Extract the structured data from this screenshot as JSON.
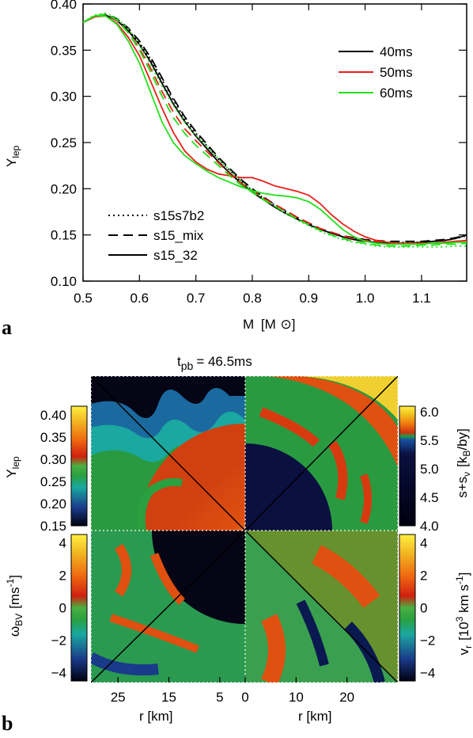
{
  "panel_labels": {
    "a": "a",
    "b": "b"
  },
  "chart_data": [
    {
      "type": "line",
      "panel": "a",
      "xlabel": "M",
      "xlabel_unit": "[M",
      "xlabel_unit_close": "]",
      "ylabel": "Y",
      "ylabel_sub": "lep",
      "xlim": [
        0.5,
        1.18
      ],
      "ylim": [
        0.1,
        0.4
      ],
      "xticks": [
        0.5,
        0.6,
        0.7,
        0.8,
        0.9,
        1.0,
        1.1
      ],
      "xtick_labels": [
        "0.5",
        "0.6",
        "0.7",
        "0.8",
        "0.9",
        "1.0",
        "1.1"
      ],
      "yticks": [
        0.1,
        0.15,
        0.2,
        0.25,
        0.3,
        0.35,
        0.4
      ],
      "ytick_labels": [
        "0.10",
        "0.15",
        "0.20",
        "0.25",
        "0.30",
        "0.35",
        "0.40"
      ],
      "time_legend": [
        {
          "label": "40ms",
          "color": "#000000"
        },
        {
          "label": "50ms",
          "color": "#e8201a"
        },
        {
          "label": "60ms",
          "color": "#22e01a"
        }
      ],
      "style_legend": [
        {
          "label": "s15s7b2",
          "dash": "dotted"
        },
        {
          "label": "s15_mix",
          "dash": "dashed"
        },
        {
          "label": "s15_32",
          "dash": "solid"
        }
      ],
      "series": [
        {
          "time": "40ms",
          "model": "s15s7b2",
          "color": "#000000",
          "dash": "dotted",
          "x": [
            0.5,
            0.52,
            0.54,
            0.56,
            0.58,
            0.6,
            0.62,
            0.64,
            0.66,
            0.68,
            0.7,
            0.72,
            0.74,
            0.76,
            0.78,
            0.8,
            0.82,
            0.84,
            0.86,
            0.88,
            0.9,
            0.92,
            0.94,
            0.96,
            0.98,
            1.0,
            1.02,
            1.04,
            1.06,
            1.08,
            1.1,
            1.12,
            1.14,
            1.16,
            1.18
          ],
          "y": [
            0.38,
            0.386,
            0.388,
            0.383,
            0.372,
            0.358,
            0.34,
            0.318,
            0.296,
            0.276,
            0.26,
            0.246,
            0.232,
            0.22,
            0.208,
            0.198,
            0.19,
            0.182,
            0.175,
            0.168,
            0.162,
            0.156,
            0.152,
            0.148,
            0.146,
            0.144,
            0.143,
            0.142,
            0.142,
            0.142,
            0.142,
            0.143,
            0.144,
            0.146,
            0.149
          ]
        },
        {
          "time": "40ms",
          "model": "s15_mix",
          "color": "#000000",
          "dash": "dashed",
          "x": [
            0.5,
            0.52,
            0.54,
            0.56,
            0.58,
            0.6,
            0.62,
            0.64,
            0.66,
            0.68,
            0.7,
            0.72,
            0.74,
            0.76,
            0.78,
            0.8,
            0.82,
            0.84,
            0.86,
            0.88,
            0.9,
            0.92,
            0.94,
            0.96,
            0.98,
            1.0,
            1.02,
            1.04,
            1.06,
            1.08,
            1.1,
            1.12,
            1.14,
            1.16,
            1.18
          ],
          "y": [
            0.38,
            0.386,
            0.389,
            0.384,
            0.374,
            0.36,
            0.342,
            0.32,
            0.298,
            0.278,
            0.262,
            0.248,
            0.234,
            0.222,
            0.21,
            0.2,
            0.191,
            0.183,
            0.176,
            0.169,
            0.163,
            0.157,
            0.153,
            0.149,
            0.147,
            0.145,
            0.144,
            0.143,
            0.143,
            0.143,
            0.143,
            0.144,
            0.145,
            0.147,
            0.15
          ]
        },
        {
          "time": "40ms",
          "model": "s15_32",
          "color": "#000000",
          "dash": "solid",
          "x": [
            0.5,
            0.52,
            0.54,
            0.56,
            0.58,
            0.6,
            0.62,
            0.64,
            0.66,
            0.68,
            0.7,
            0.72,
            0.74,
            0.76,
            0.78,
            0.8,
            0.82,
            0.84,
            0.86,
            0.88,
            0.9,
            0.92,
            0.94,
            0.96,
            0.98,
            1.0,
            1.02,
            1.04,
            1.06,
            1.08,
            1.1,
            1.12,
            1.14,
            1.16,
            1.18
          ],
          "y": [
            0.38,
            0.386,
            0.388,
            0.382,
            0.371,
            0.356,
            0.337,
            0.314,
            0.292,
            0.273,
            0.257,
            0.243,
            0.229,
            0.217,
            0.206,
            0.196,
            0.188,
            0.18,
            0.173,
            0.167,
            0.161,
            0.156,
            0.152,
            0.148,
            0.145,
            0.143,
            0.142,
            0.141,
            0.141,
            0.141,
            0.142,
            0.143,
            0.144,
            0.146,
            0.15
          ]
        },
        {
          "time": "50ms",
          "model": "s15_mix",
          "color": "#e8201a",
          "dash": "dashed",
          "x": [
            0.5,
            0.52,
            0.54,
            0.56,
            0.58,
            0.6,
            0.62,
            0.64,
            0.66,
            0.68,
            0.7,
            0.72,
            0.74,
            0.76,
            0.78,
            0.8,
            0.82,
            0.84,
            0.86,
            0.88,
            0.9,
            0.92,
            0.94,
            0.96,
            0.98,
            1.0,
            1.02,
            1.04,
            1.06,
            1.08,
            1.1,
            1.12,
            1.14,
            1.16,
            1.18
          ],
          "y": [
            0.38,
            0.387,
            0.389,
            0.382,
            0.369,
            0.352,
            0.33,
            0.305,
            0.283,
            0.265,
            0.252,
            0.24,
            0.228,
            0.216,
            0.206,
            0.198,
            0.19,
            0.183,
            0.176,
            0.169,
            0.163,
            0.157,
            0.153,
            0.149,
            0.146,
            0.144,
            0.143,
            0.142,
            0.141,
            0.141,
            0.141,
            0.141,
            0.142,
            0.143,
            0.144
          ]
        },
        {
          "time": "50ms",
          "model": "s15_32",
          "color": "#e8201a",
          "dash": "solid",
          "x": [
            0.5,
            0.52,
            0.54,
            0.56,
            0.58,
            0.6,
            0.62,
            0.64,
            0.66,
            0.68,
            0.7,
            0.72,
            0.74,
            0.76,
            0.78,
            0.8,
            0.82,
            0.84,
            0.86,
            0.88,
            0.9,
            0.92,
            0.94,
            0.96,
            0.98,
            1.0,
            1.02,
            1.04,
            1.06,
            1.08,
            1.1,
            1.12,
            1.14,
            1.16,
            1.18
          ],
          "y": [
            0.38,
            0.386,
            0.387,
            0.379,
            0.364,
            0.344,
            0.316,
            0.287,
            0.261,
            0.241,
            0.229,
            0.221,
            0.216,
            0.214,
            0.212,
            0.212,
            0.208,
            0.203,
            0.2,
            0.197,
            0.193,
            0.184,
            0.172,
            0.162,
            0.154,
            0.148,
            0.144,
            0.142,
            0.141,
            0.141,
            0.141,
            0.141,
            0.142,
            0.143,
            0.144
          ]
        },
        {
          "time": "60ms",
          "model": "s15s7b2",
          "color": "#22e01a",
          "dash": "dotted",
          "x": [
            0.5,
            0.52,
            0.54,
            0.56,
            0.58,
            0.6,
            0.62,
            0.64,
            0.66,
            0.68,
            0.7,
            0.72,
            0.74,
            0.76,
            0.78,
            0.8,
            0.82,
            0.84,
            0.86,
            0.88,
            0.9,
            0.92,
            0.94,
            0.96,
            0.98,
            1.0,
            1.02,
            1.04,
            1.06,
            1.08,
            1.1,
            1.12,
            1.14,
            1.16,
            1.18
          ],
          "y": [
            0.38,
            0.388,
            0.39,
            0.385,
            0.373,
            0.356,
            0.334,
            0.311,
            0.29,
            0.272,
            0.258,
            0.245,
            0.232,
            0.22,
            0.208,
            0.198,
            0.189,
            0.181,
            0.173,
            0.166,
            0.16,
            0.154,
            0.149,
            0.145,
            0.142,
            0.14,
            0.138,
            0.137,
            0.137,
            0.137,
            0.137,
            0.137,
            0.137,
            0.138,
            0.138
          ]
        },
        {
          "time": "60ms",
          "model": "s15_mix",
          "color": "#22e01a",
          "dash": "dashed",
          "x": [
            0.5,
            0.52,
            0.54,
            0.56,
            0.58,
            0.6,
            0.62,
            0.64,
            0.66,
            0.68,
            0.7,
            0.72,
            0.74,
            0.76,
            0.78,
            0.8,
            0.82,
            0.84,
            0.86,
            0.88,
            0.9,
            0.92,
            0.94,
            0.96,
            0.98,
            1.0,
            1.02,
            1.04,
            1.06,
            1.08,
            1.1,
            1.12,
            1.14,
            1.16,
            1.18
          ],
          "y": [
            0.38,
            0.387,
            0.389,
            0.383,
            0.369,
            0.35,
            0.326,
            0.3,
            0.277,
            0.26,
            0.247,
            0.236,
            0.225,
            0.214,
            0.204,
            0.196,
            0.188,
            0.181,
            0.174,
            0.167,
            0.161,
            0.155,
            0.15,
            0.146,
            0.143,
            0.141,
            0.139,
            0.138,
            0.138,
            0.138,
            0.139,
            0.139,
            0.14,
            0.14,
            0.141
          ]
        },
        {
          "time": "60ms",
          "model": "s15_32",
          "color": "#22e01a",
          "dash": "solid",
          "x": [
            0.5,
            0.52,
            0.54,
            0.56,
            0.58,
            0.6,
            0.62,
            0.64,
            0.66,
            0.68,
            0.7,
            0.72,
            0.74,
            0.76,
            0.78,
            0.8,
            0.82,
            0.84,
            0.86,
            0.88,
            0.9,
            0.92,
            0.94,
            0.96,
            0.98,
            1.0,
            1.02,
            1.04,
            1.06,
            1.08,
            1.1,
            1.12,
            1.14,
            1.16,
            1.18
          ],
          "y": [
            0.38,
            0.387,
            0.387,
            0.378,
            0.36,
            0.336,
            0.304,
            0.272,
            0.25,
            0.236,
            0.227,
            0.219,
            0.212,
            0.207,
            0.202,
            0.198,
            0.195,
            0.193,
            0.192,
            0.19,
            0.186,
            0.178,
            0.167,
            0.156,
            0.148,
            0.143,
            0.141,
            0.14,
            0.14,
            0.14,
            0.14,
            0.141,
            0.141,
            0.142,
            0.142
          ]
        }
      ]
    },
    {
      "type": "heatmap",
      "panel": "b",
      "title": "t",
      "title_sub": "pb",
      "title_value": "= 46.5ms",
      "x_left_ticks": [
        "25",
        "15",
        "5"
      ],
      "x_left_tick_values": [
        25,
        15,
        5
      ],
      "x_right_ticks": [
        "0",
        "10",
        "20"
      ],
      "x_right_tick_values": [
        0,
        10,
        20
      ],
      "x_range_km": [
        0,
        30
      ],
      "xlabel_left": "r [km]",
      "xlabel_right": "r [km]",
      "colorbars": [
        {
          "position": "top-left",
          "label": "Y",
          "label_sub": "lep",
          "ticks": [
            "0.40",
            "0.35",
            "0.30",
            "0.25",
            "0.20",
            "0.15"
          ],
          "range": [
            0.15,
            0.42
          ]
        },
        {
          "position": "top-right",
          "label": "s+s",
          "label_sub": "ν",
          "label_unit": "[k",
          "label_unit_sub": "B",
          "label_unit_end": "/by]",
          "ticks": [
            "6.0",
            "5.5",
            "5.0",
            "4.5",
            "4.0"
          ],
          "range": [
            4.0,
            6.1
          ]
        },
        {
          "position": "bottom-left",
          "label": "ω",
          "label_sub": "BV",
          "label_unit": "[ms",
          "label_unit_sup": "-1",
          "label_unit_end": "]",
          "ticks": [
            "4",
            "2",
            "0",
            "−2",
            "−4"
          ],
          "range": [
            -4.5,
            4.5
          ]
        },
        {
          "position": "bottom-right",
          "label": "v",
          "label_sub": "r",
          "label_unit": "[10",
          "label_unit_sup": "3",
          "label_unit_end": " km s",
          "label_unit_sup2": "-1",
          "label_unit_end2": "]",
          "ticks": [
            "4",
            "2",
            "0",
            "−2",
            "−4"
          ],
          "range": [
            -4.5,
            4.5
          ]
        }
      ]
    }
  ]
}
